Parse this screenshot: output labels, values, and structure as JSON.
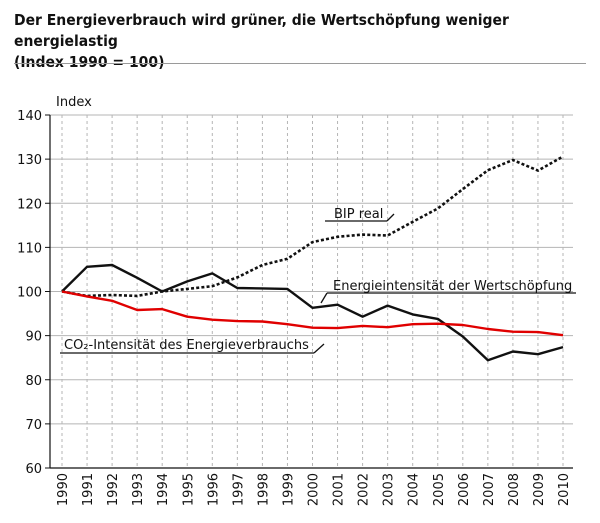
{
  "header": {
    "title": "Der Energieverbrauch wird grüner, die Wertschöpfung weniger energielastig",
    "subtitle": "(Index 1990 = 100)"
  },
  "colors": {
    "bip": "#111111",
    "energy": "#111111",
    "co2": "#e00000",
    "grid": "#b5b5b5"
  },
  "chart_data": {
    "type": "line",
    "ylabel": "Index",
    "ylim": [
      60,
      140
    ],
    "yticks": [
      60,
      70,
      80,
      90,
      100,
      110,
      120,
      130,
      140
    ],
    "x": [
      "1990",
      "1991",
      "1992",
      "1993",
      "1994",
      "1995",
      "1996",
      "1997",
      "1998",
      "1999",
      "2000",
      "2001",
      "2002",
      "2003",
      "2004",
      "2005",
      "2006",
      "2007",
      "2008",
      "2009",
      "2010"
    ],
    "grid": "horizontal solid, vertical dashed",
    "series": [
      {
        "name": "BIP real",
        "style": "dotted",
        "values": [
          100,
          99.0,
          99.2,
          99.0,
          100.0,
          100.6,
          101.2,
          103.2,
          106.0,
          107.4,
          111.2,
          112.4,
          112.9,
          112.7,
          115.8,
          118.8,
          123.2,
          127.5,
          129.8,
          127.4,
          130.6
        ]
      },
      {
        "name": "Energieintensität der Wertschöpfung",
        "style": "solid",
        "values": [
          100,
          105.6,
          106.0,
          103.1,
          100.0,
          102.3,
          104.1,
          100.8,
          100.7,
          100.6,
          96.3,
          97.0,
          94.3,
          96.8,
          94.8,
          93.8,
          89.8,
          84.4,
          86.4,
          85.8,
          87.4
        ]
      },
      {
        "name": "CO₂-Intensität des Energieverbrauchs",
        "style": "red",
        "values": [
          100,
          98.9,
          97.9,
          95.8,
          96.0,
          94.3,
          93.6,
          93.3,
          93.2,
          92.6,
          91.8,
          91.7,
          92.2,
          91.9,
          92.6,
          92.7,
          92.4,
          91.5,
          90.9,
          90.8,
          90.1
        ]
      }
    ],
    "annotations": [
      "BIP real",
      "Energieintensität der Wertschöpfung",
      "CO₂-Intensität des Energieverbrauchs"
    ]
  }
}
